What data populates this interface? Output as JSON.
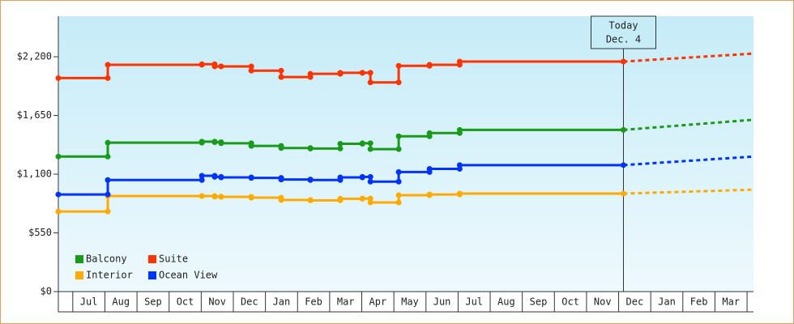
{
  "chart_data": {
    "type": "step-line",
    "ylim": [
      0,
      2580
    ],
    "yticks": [
      {
        "value": 0,
        "label": "$0"
      },
      {
        "value": 550,
        "label": "$550"
      },
      {
        "value": 1100,
        "label": "$1,100"
      },
      {
        "value": 1650,
        "label": "$1,650"
      },
      {
        "value": 2200,
        "label": "$2,200"
      }
    ],
    "xlim": [
      -0.45,
      21.2
    ],
    "xticks": [
      {
        "value": 0.5,
        "label": "Jul"
      },
      {
        "value": 1.5,
        "label": "Aug"
      },
      {
        "value": 2.5,
        "label": "Sep"
      },
      {
        "value": 3.5,
        "label": "Oct"
      },
      {
        "value": 4.5,
        "label": "Nov"
      },
      {
        "value": 5.5,
        "label": "Dec"
      },
      {
        "value": 6.5,
        "label": "Jan"
      },
      {
        "value": 7.5,
        "label": "Feb"
      },
      {
        "value": 8.5,
        "label": "Mar"
      },
      {
        "value": 9.5,
        "label": "Apr"
      },
      {
        "value": 10.5,
        "label": "May"
      },
      {
        "value": 11.5,
        "label": "Jun"
      },
      {
        "value": 12.5,
        "label": "Jul"
      },
      {
        "value": 13.5,
        "label": "Aug"
      },
      {
        "value": 14.5,
        "label": "Sep"
      },
      {
        "value": 15.5,
        "label": "Oct"
      },
      {
        "value": 16.5,
        "label": "Nov"
      },
      {
        "value": 17.5,
        "label": "Dec"
      },
      {
        "value": 18.5,
        "label": "Jan"
      },
      {
        "value": 19.5,
        "label": "Feb"
      },
      {
        "value": 20.5,
        "label": "Mar"
      }
    ],
    "x": [
      -0.45,
      1.09,
      4.02,
      4.42,
      4.62,
      5.56,
      6.49,
      7.4,
      8.33,
      9.02,
      9.27,
      10.15,
      11.11,
      12.05,
      17.15
    ],
    "forecast_x": [
      17.15,
      21.2
    ],
    "today": {
      "x": 17.15,
      "label": [
        "Today",
        "Dec. 4"
      ]
    },
    "series": [
      {
        "name": "Balcony",
        "color": "#1a9a1a",
        "values": [
          1265,
          1395,
          1405,
          1400,
          1390,
          1365,
          1345,
          1340,
          1385,
          1390,
          1335,
          1455,
          1485,
          1515,
          1515
        ],
        "forecast": [
          1515,
          1610
        ]
      },
      {
        "name": "Suite",
        "color": "#ff3300",
        "values": [
          2000,
          2125,
          2130,
          2110,
          2110,
          2070,
          2010,
          2040,
          2050,
          2050,
          1960,
          2115,
          2125,
          2155,
          2155
        ],
        "forecast": [
          2155,
          2230
        ]
      },
      {
        "name": "Interior",
        "color": "#ffaa00",
        "values": [
          750,
          895,
          895,
          890,
          888,
          880,
          858,
          855,
          870,
          872,
          835,
          903,
          910,
          918,
          918
        ],
        "forecast": [
          918,
          955
        ]
      },
      {
        "name": "Ocean View",
        "color": "#0033ff",
        "values": [
          910,
          1045,
          1085,
          1075,
          1070,
          1065,
          1050,
          1045,
          1070,
          1075,
          1030,
          1120,
          1150,
          1185,
          1185
        ],
        "forecast": [
          1185,
          1265
        ]
      }
    ]
  }
}
